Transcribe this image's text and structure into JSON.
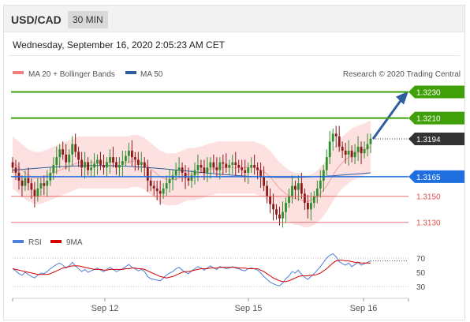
{
  "header": {
    "symbol": "USD/CAD",
    "timeframe": "30 MIN"
  },
  "datetime": "Wednesday, September 16, 2020 2:05:23 AM CET",
  "legend": {
    "ma20": {
      "label": "MA 20 + Bollinger Bands",
      "color": "#f08080"
    },
    "ma50": {
      "label": "MA 50",
      "color": "#2b5f9e"
    },
    "rsi": {
      "label": "RSI",
      "color": "#4f7fd8"
    },
    "nine_ma": {
      "label": "9MA",
      "color": "#d40000"
    }
  },
  "credit": "Research © 2020 Trading Central",
  "colors": {
    "up": "#2d8f2d",
    "down": "#8b1a1a",
    "band": "#fcd9d9",
    "target": "#3fa00a",
    "pivot": "#1f6fe0",
    "support": "#e05050",
    "last": "#333333",
    "arrow": "#2e5fa0"
  },
  "chart_data": [
    {
      "type": "candlestick",
      "title": "USD/CAD",
      "timeframe": "30 MIN",
      "x_ticks": [
        "Sep 12",
        "Sep 15",
        "Sep 16"
      ],
      "ylim": [
        1.3125,
        1.324
      ],
      "levels": [
        {
          "value": 1.323,
          "label": "1.3230",
          "kind": "target"
        },
        {
          "value": 1.321,
          "label": "1.3210",
          "kind": "target"
        },
        {
          "value": 1.3194,
          "label": "1.3194",
          "kind": "last"
        },
        {
          "value": 1.3165,
          "label": "1.3165",
          "kind": "pivot"
        },
        {
          "value": 1.315,
          "label": "1.3150",
          "kind": "support"
        },
        {
          "value": 1.313,
          "label": "1.3130",
          "kind": "support"
        }
      ],
      "close": [
        1.3172,
        1.3168,
        1.3162,
        1.3158,
        1.3164,
        1.316,
        1.3155,
        1.315,
        1.3156,
        1.316,
        1.3158,
        1.3162,
        1.3168,
        1.3174,
        1.318,
        1.3186,
        1.3182,
        1.3176,
        1.3182,
        1.319,
        1.3184,
        1.3178,
        1.3172,
        1.3176,
        1.317,
        1.3172,
        1.3175,
        1.3178,
        1.3174,
        1.3172,
        1.3176,
        1.318,
        1.3176,
        1.3172,
        1.3174,
        1.3177,
        1.3181,
        1.3185,
        1.318,
        1.3178,
        1.3174,
        1.3176,
        1.3172,
        1.3162,
        1.3158,
        1.3156,
        1.3154,
        1.3152,
        1.3156,
        1.316,
        1.3163,
        1.3166,
        1.317,
        1.3172,
        1.3168,
        1.3164,
        1.3162,
        1.3166,
        1.317,
        1.3174,
        1.3172,
        1.3168,
        1.3172,
        1.3176,
        1.3172,
        1.317,
        1.3176,
        1.3175,
        1.3172,
        1.3174,
        1.3176,
        1.3174,
        1.3172,
        1.317,
        1.3168,
        1.3172,
        1.3174,
        1.3172,
        1.317,
        1.3165,
        1.3158,
        1.315,
        1.3144,
        1.314,
        1.3136,
        1.3133,
        1.3138,
        1.3145,
        1.315,
        1.3158,
        1.3155,
        1.316,
        1.3152,
        1.3145,
        1.314,
        1.3145,
        1.315,
        1.3156,
        1.3162,
        1.317,
        1.318,
        1.3192,
        1.3198,
        1.3196,
        1.3188,
        1.3185,
        1.3182,
        1.3185,
        1.318,
        1.3184,
        1.3188,
        1.3183,
        1.3186,
        1.319,
        1.3194
      ],
      "bollinger": {
        "ma20": [
          1.3176,
          1.3174,
          1.3172,
          1.317,
          1.3168,
          1.3166,
          1.3165,
          1.3164,
          1.3164,
          1.3164,
          1.3165,
          1.3166,
          1.3167,
          1.3168,
          1.3169,
          1.317,
          1.3171,
          1.3172,
          1.3173,
          1.3174,
          1.3175,
          1.3176,
          1.3176,
          1.3176,
          1.3176,
          1.3176,
          1.3176,
          1.3176,
          1.3176,
          1.3176,
          1.3176,
          1.3176,
          1.3176,
          1.3176,
          1.3176,
          1.3176,
          1.3176,
          1.3176,
          1.3177,
          1.3177,
          1.3177,
          1.3176,
          1.3175,
          1.3173,
          1.3171,
          1.3169,
          1.3167,
          1.3165,
          1.3164,
          1.3163,
          1.3163,
          1.3163,
          1.3163,
          1.3164,
          1.3165,
          1.3166,
          1.3167,
          1.3167,
          1.3167,
          1.3168,
          1.3168,
          1.3169,
          1.317,
          1.3171,
          1.3171,
          1.3172,
          1.3172,
          1.3172,
          1.3172,
          1.3172,
          1.3172,
          1.3172,
          1.3172,
          1.3172,
          1.3172,
          1.3172,
          1.3172,
          1.3172,
          1.3171,
          1.317,
          1.3169,
          1.3167,
          1.3165,
          1.3162,
          1.3159,
          1.3156,
          1.3154,
          1.3152,
          1.315,
          1.3149,
          1.3148,
          1.3148,
          1.3147,
          1.3146,
          1.3146,
          1.3147,
          1.3148,
          1.315,
          1.3152,
          1.3155,
          1.3158,
          1.3162,
          1.3166,
          1.317,
          1.3173,
          1.3176,
          1.3178,
          1.318,
          1.3182,
          1.3183,
          1.3184,
          1.3185,
          1.3186,
          1.3187,
          1.3188
        ],
        "upper_width": 0.002
      },
      "ma50_start": 1.317,
      "ma50_end": 1.3168
    },
    {
      "type": "line",
      "title": "RSI",
      "series": [
        {
          "name": "RSI",
          "values": [
            55,
            52,
            48,
            46,
            50,
            47,
            44,
            42,
            46,
            49,
            48,
            51,
            55,
            58,
            61,
            63,
            60,
            56,
            59,
            64,
            59,
            55,
            51,
            54,
            50,
            52,
            54,
            56,
            53,
            51,
            54,
            57,
            54,
            51,
            53,
            55,
            58,
            61,
            57,
            55,
            52,
            54,
            51,
            44,
            41,
            40,
            39,
            38,
            42,
            46,
            49,
            51,
            55,
            57,
            53,
            50,
            48,
            52,
            55,
            58,
            56,
            53,
            56,
            59,
            56,
            54,
            58,
            57,
            55,
            56,
            58,
            56,
            55,
            53,
            52,
            55,
            56,
            55,
            53,
            49,
            44,
            40,
            36,
            34,
            32,
            31,
            35,
            41,
            45,
            51,
            49,
            53,
            47,
            43,
            40,
            44,
            48,
            53,
            58,
            64,
            70,
            74,
            76,
            72,
            65,
            62,
            60,
            63,
            58,
            61,
            64,
            60,
            62,
            64,
            66
          ]
        },
        {
          "name": "9MA",
          "values": [
            55,
            54,
            53,
            52,
            51,
            50,
            49,
            48,
            47,
            47,
            47,
            47,
            48,
            50,
            52,
            54,
            56,
            57,
            58,
            59,
            59,
            59,
            58,
            57,
            56,
            55,
            54,
            54,
            54,
            53,
            53,
            54,
            54,
            54,
            54,
            54,
            55,
            55,
            56,
            56,
            55,
            55,
            54,
            52,
            50,
            48,
            46,
            44,
            43,
            42,
            43,
            44,
            46,
            48,
            50,
            51,
            51,
            52,
            53,
            54,
            55,
            55,
            55,
            56,
            56,
            56,
            57,
            57,
            57,
            57,
            57,
            57,
            56,
            56,
            56,
            55,
            55,
            55,
            55,
            53,
            51,
            48,
            45,
            42,
            40,
            38,
            37,
            37,
            38,
            40,
            42,
            44,
            45,
            45,
            45,
            46,
            46,
            47,
            49,
            52,
            55,
            59,
            63,
            66,
            67,
            67,
            66,
            66,
            65,
            64,
            64,
            63,
            63,
            63,
            63
          ]
        }
      ],
      "y_ticks": [
        70,
        50,
        30
      ],
      "ylim": [
        20,
        80
      ]
    }
  ]
}
